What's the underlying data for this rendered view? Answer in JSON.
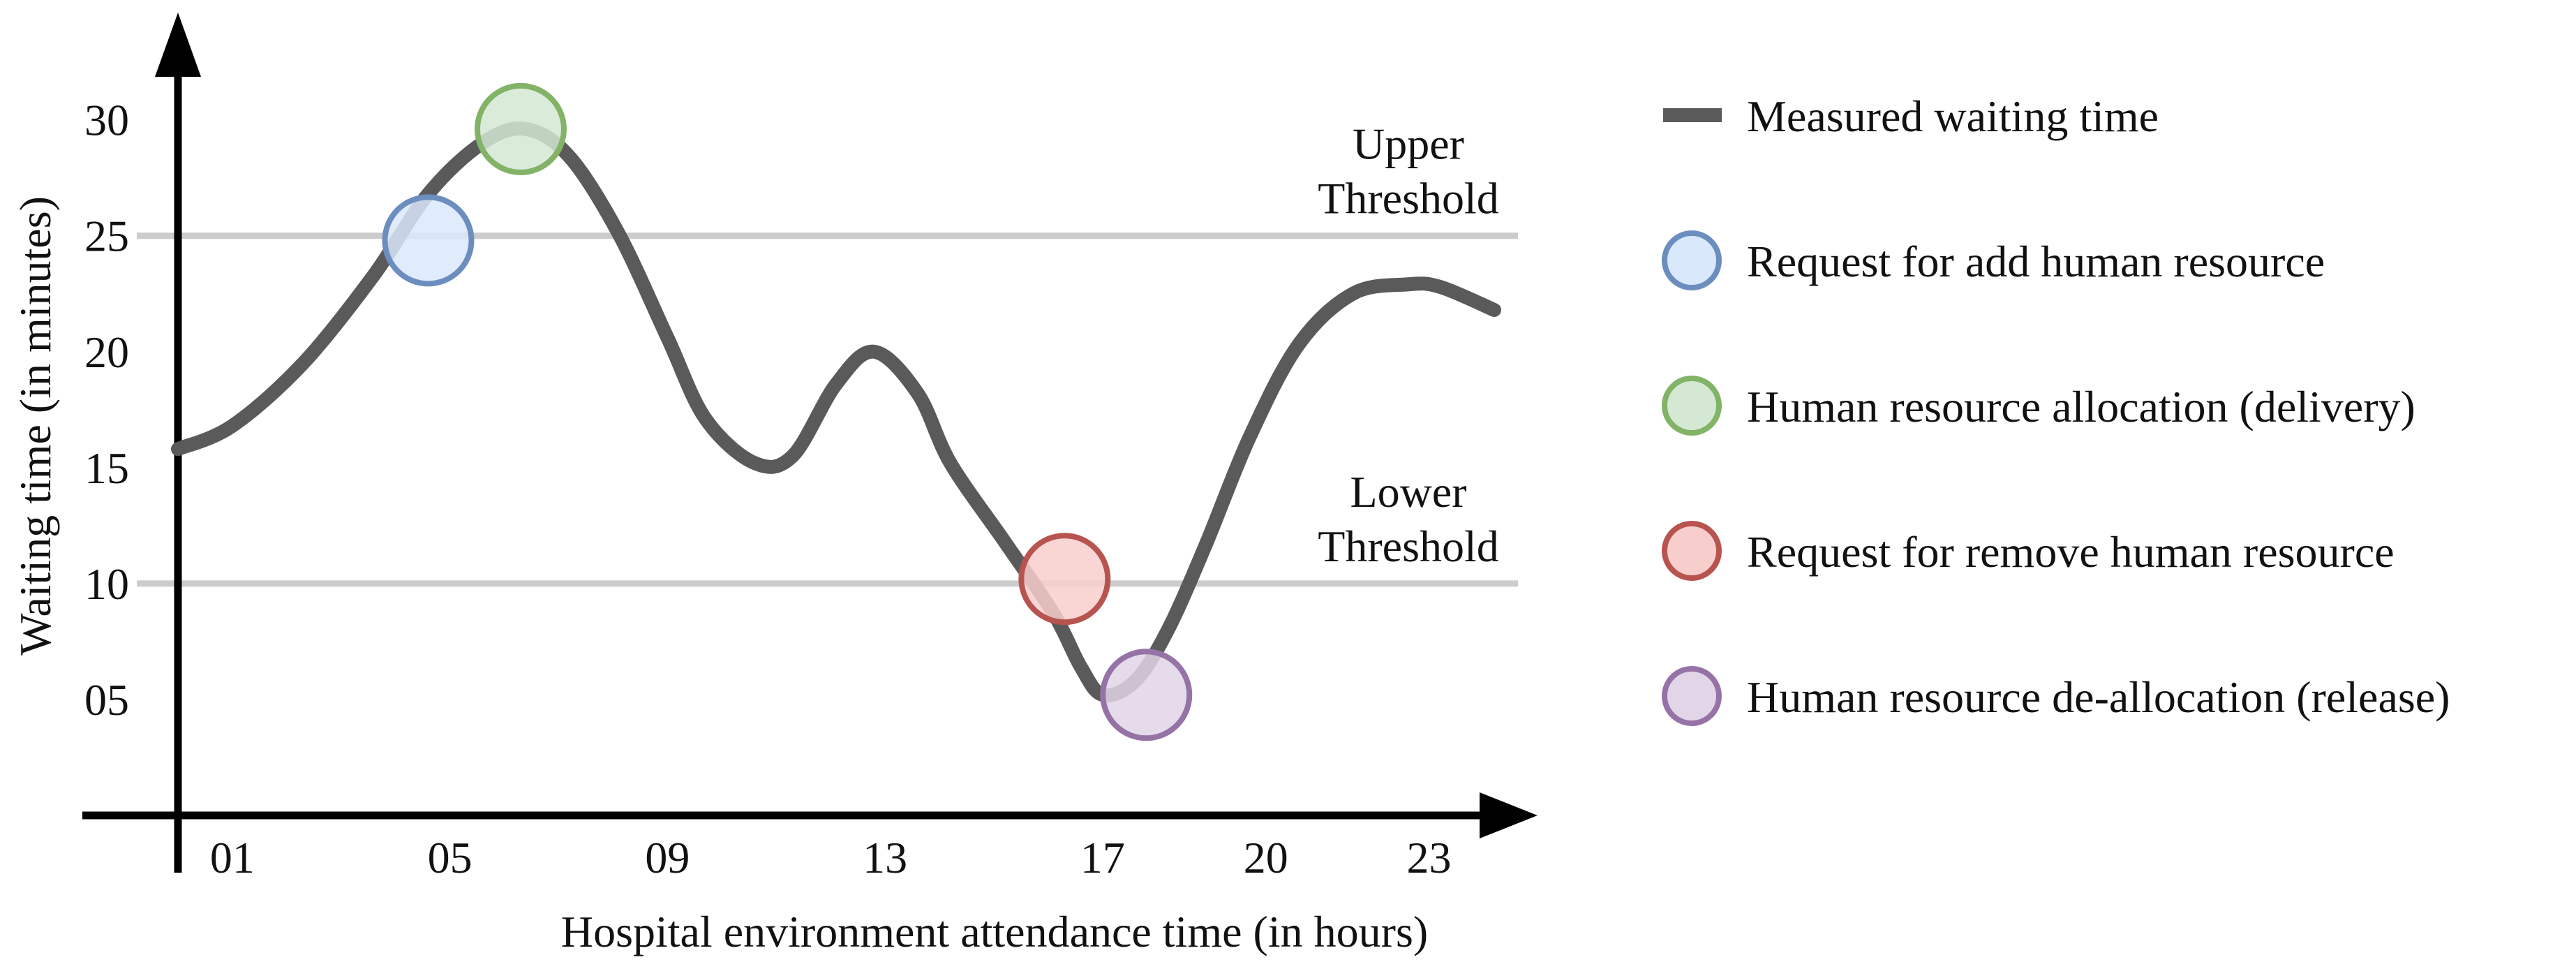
{
  "chart_data": {
    "type": "line",
    "xlabel": "Hospital environment attendance time (in hours)",
    "ylabel": "Waiting time (in minutes)",
    "x_ticks": [
      {
        "value": 1,
        "label": "01"
      },
      {
        "value": 5,
        "label": "05"
      },
      {
        "value": 9,
        "label": "09"
      },
      {
        "value": 13,
        "label": "13"
      },
      {
        "value": 17,
        "label": "17"
      },
      {
        "value": 20,
        "label": "20"
      },
      {
        "value": 23,
        "label": "23"
      }
    ],
    "y_ticks": [
      {
        "value": 5,
        "label": "05"
      },
      {
        "value": 10,
        "label": "10"
      },
      {
        "value": 15,
        "label": "15"
      },
      {
        "value": 20,
        "label": "20"
      },
      {
        "value": 25,
        "label": "25"
      },
      {
        "value": 30,
        "label": "30"
      }
    ],
    "xlim": [
      0,
      24.7
    ],
    "ylim": [
      0,
      33
    ],
    "series": [
      {
        "name": "Measured waiting time",
        "color": "#5a5a5a",
        "x": [
          0,
          1,
          2.3,
          3.6,
          4.6,
          5.6,
          6.4,
          7.2,
          8.1,
          9,
          9.7,
          10.6,
          11.3,
          12.1,
          12.8,
          13.6,
          14.2,
          15.2,
          16.1,
          16.6,
          17,
          17.6,
          18.2,
          18.9,
          19.7,
          20.6,
          21.6,
          22.6,
          23.2,
          24.2
        ],
        "y": [
          15.8,
          16.8,
          19.5,
          23.3,
          26.8,
          29,
          29.6,
          28.4,
          25.1,
          20.6,
          17.1,
          15.2,
          15.5,
          18.6,
          20,
          18.2,
          15.2,
          11.8,
          8.7,
          6.4,
          5.2,
          5.8,
          8,
          11.7,
          16.3,
          20.3,
          22.5,
          22.9,
          22.8,
          21.8
        ]
      }
    ],
    "thresholds": [
      {
        "name": "Upper Threshold",
        "line1": "Upper",
        "line2": "Threshold",
        "value": 25,
        "color": "#cccccc"
      },
      {
        "name": "Lower Threshold",
        "line1": "Lower",
        "line2": "Threshold",
        "value": 10,
        "color": "#cccccc"
      }
    ],
    "events": [
      {
        "name": "Request for add human resource",
        "x": 4.6,
        "y": 24.8,
        "fill": "#dae8fc",
        "stroke": "#6c8ebf"
      },
      {
        "name": "Human resource allocation (delivery)",
        "x": 6.3,
        "y": 29.6,
        "fill": "#d5e8d4",
        "stroke": "#82b366"
      },
      {
        "name": "Request for remove human resource",
        "x": 16.3,
        "y": 10.2,
        "fill": "#f8cecc",
        "stroke": "#b85450"
      },
      {
        "name": "Human resource de-allocation (release)",
        "x": 17.8,
        "y": 5.2,
        "fill": "#e1d5e7",
        "stroke": "#9673a6"
      }
    ],
    "legend_position": "right"
  }
}
